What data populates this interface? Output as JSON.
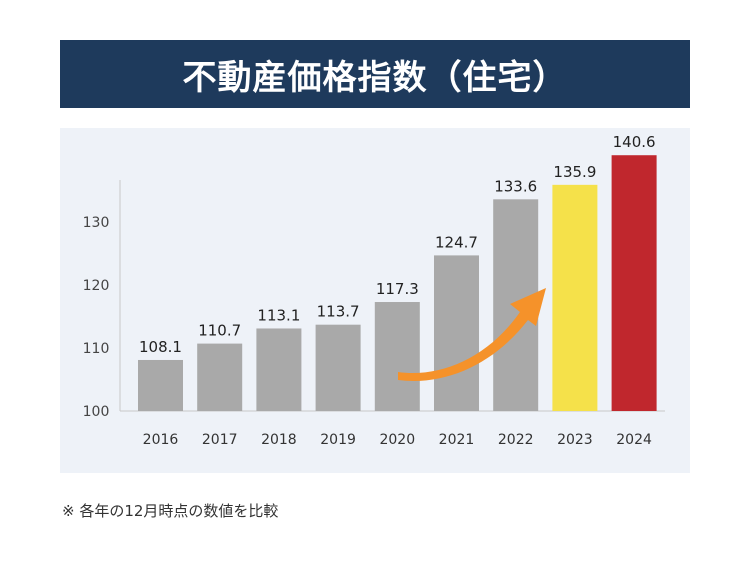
{
  "title": "不動産価格指数（住宅）",
  "note": "※ 各年の12月時点の数値を比較",
  "colors": {
    "banner": "#1e3a5c",
    "panel": "#eef2f8",
    "bar_default": "#a9a9a9",
    "bar_2023": "#f5e14a",
    "bar_2024": "#c0272d",
    "arrow": "#f5922a"
  },
  "chart_data": {
    "type": "bar",
    "categories": [
      "2016",
      "2017",
      "2018",
      "2019",
      "2020",
      "2021",
      "2022",
      "2023",
      "2024"
    ],
    "values": [
      108.1,
      110.7,
      113.1,
      113.7,
      117.3,
      124.7,
      133.6,
      135.9,
      140.6
    ],
    "data_labels": [
      "108.1",
      "110.7",
      "113.1",
      "113.7",
      "117.3",
      "124.7",
      "133.6",
      "135.9",
      "140.6"
    ],
    "yticks": [
      "100",
      "110",
      "120",
      "130"
    ],
    "ylim": [
      100,
      140
    ],
    "grid": false,
    "annotation": "orange-upward-arrow"
  }
}
